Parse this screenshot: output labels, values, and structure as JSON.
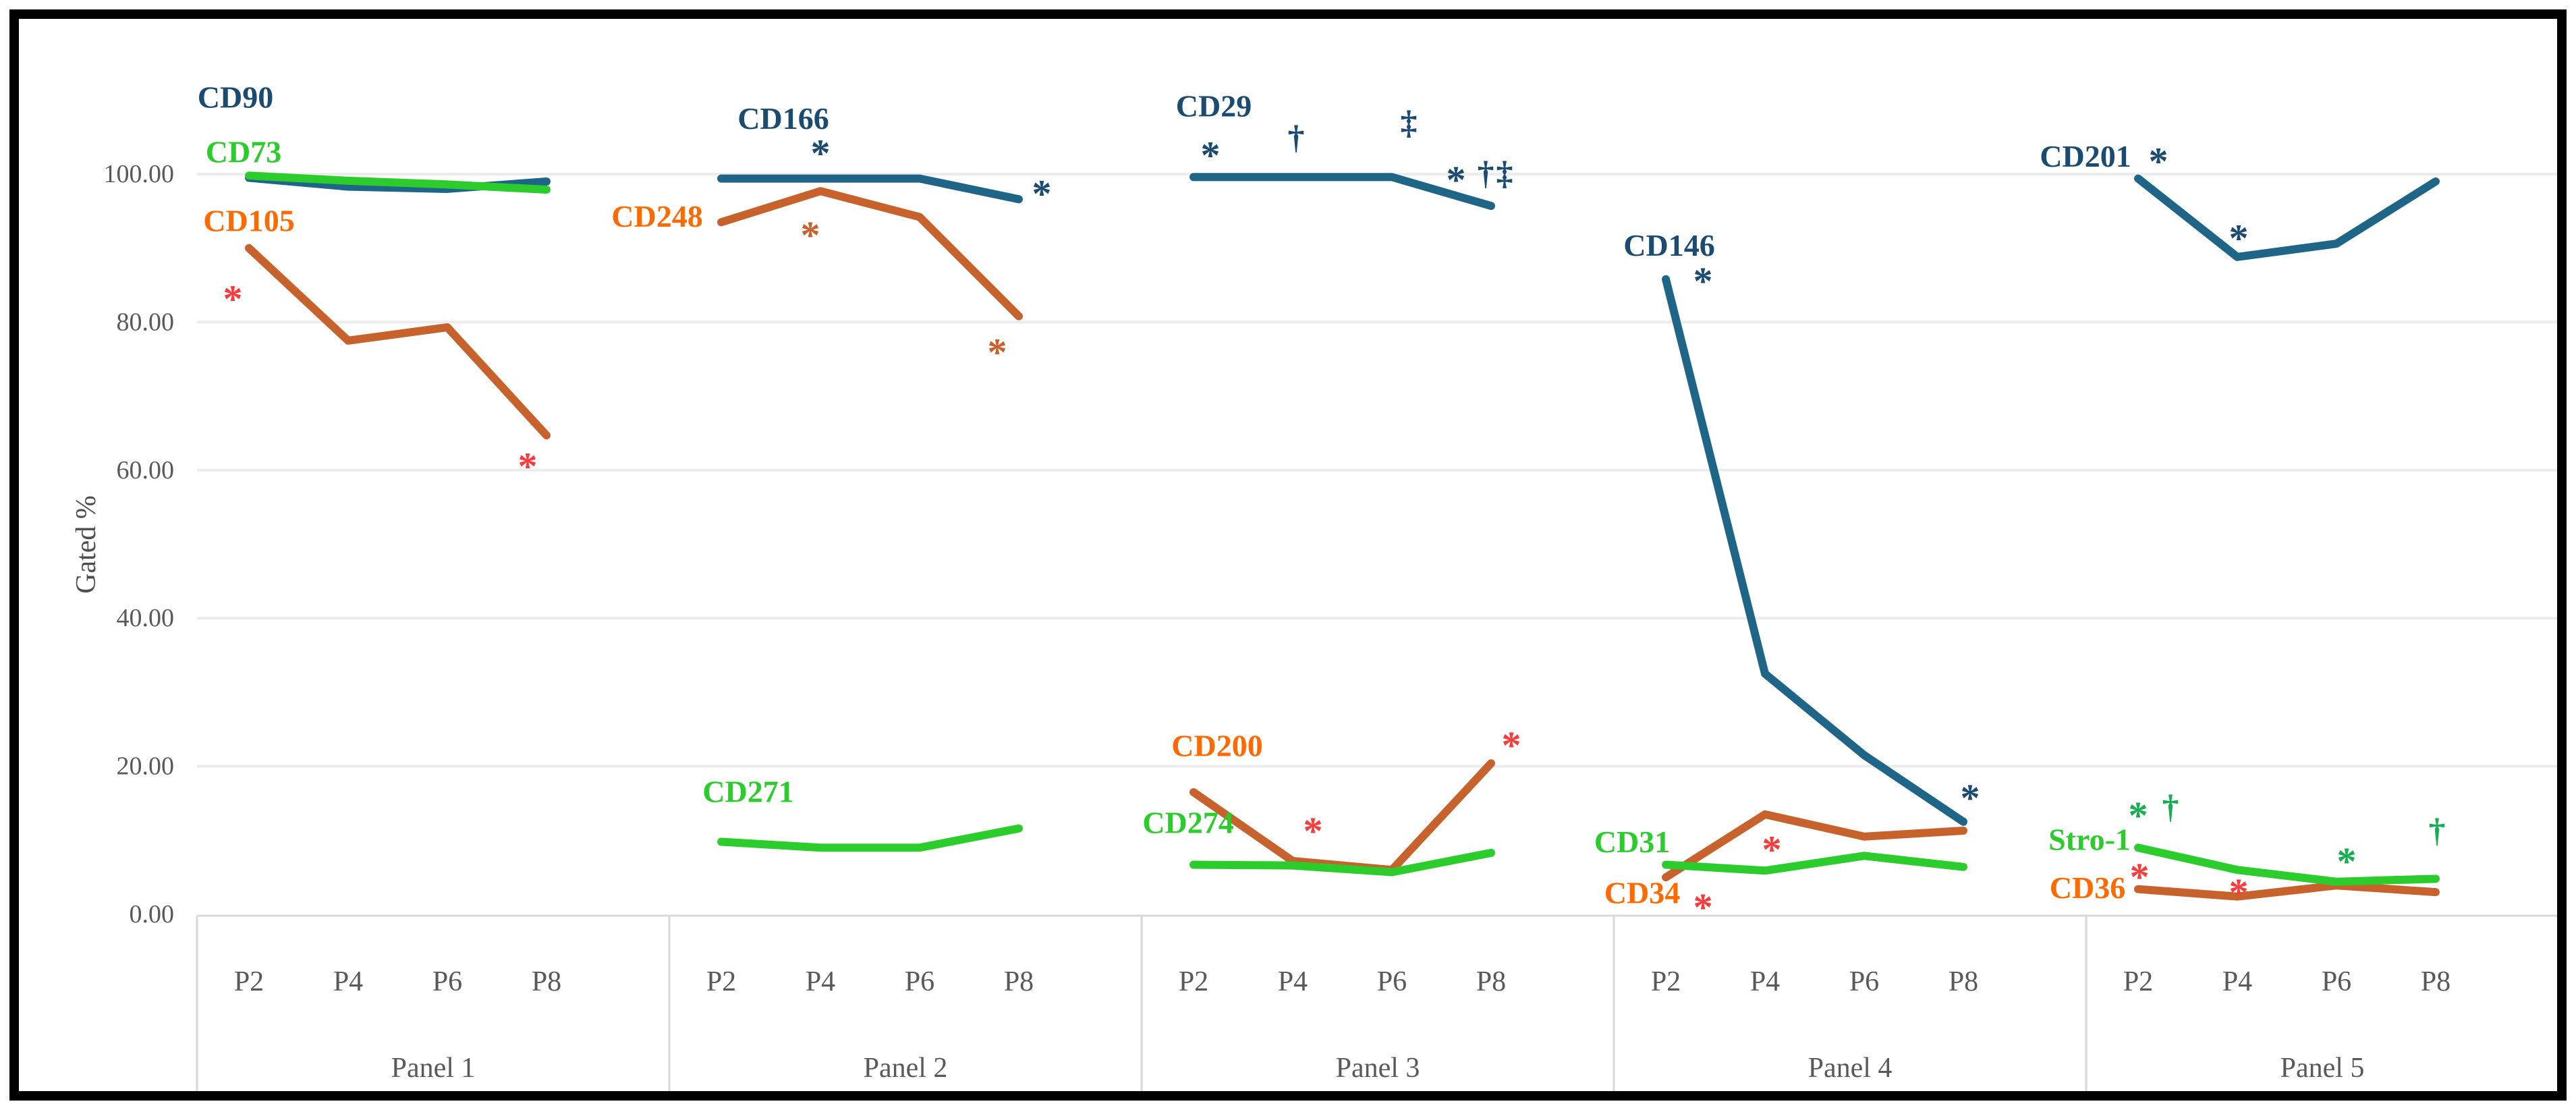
{
  "chart_data": {
    "type": "line",
    "title": "",
    "ylabel": "Gated %",
    "xlabel": "",
    "ylim": [
      0,
      100
    ],
    "grid": true,
    "legend": "inline-labels",
    "y_ticks": [
      {
        "value": 100,
        "label": "100.00"
      },
      {
        "value": 80,
        "label": "80.00"
      },
      {
        "value": 60,
        "label": "60.00"
      },
      {
        "value": 40,
        "label": "40.00"
      },
      {
        "value": 20,
        "label": "20.00"
      },
      {
        "value": 0,
        "label": "0.00"
      }
    ],
    "passages": [
      "P2",
      "P4",
      "P6",
      "P8"
    ],
    "colors": {
      "blue": "#1F6588",
      "navy": "#1B4B70",
      "green": "#2BCC2B",
      "green_marker": "#17AE52",
      "orange": "#C8622C",
      "orange_label": "#FF6A00",
      "red": "#FA3B3B",
      "tick_text": "#595959",
      "axis_text": "#4D4D4D",
      "grid_line": "#ECECEC",
      "band_line": "#D9D9D9",
      "frame": "#000000"
    },
    "panels": [
      {
        "label": "Panel 1",
        "series": [
          {
            "name": "CD90",
            "color": "blue",
            "values": [
              99.5,
              98.3,
              98.0,
              99.0
            ]
          },
          {
            "name": "CD73",
            "color": "green",
            "values": [
              99.8,
              99.1,
              98.6,
              97.9
            ]
          },
          {
            "name": "CD105",
            "color": "orange",
            "values": [
              90.0,
              77.5,
              79.3,
              64.7
            ]
          }
        ],
        "series_labels": [
          {
            "text": "CD90",
            "color": "navy",
            "slot": 0,
            "value": 110.4,
            "dx": -20
          },
          {
            "text": "CD73",
            "color": "green",
            "slot": 0,
            "value": 103.0,
            "dx": -8
          },
          {
            "text": "CD105",
            "color": "orange_label",
            "slot": 0,
            "value": 93.7,
            "dx": 0
          }
        ],
        "markers": [
          {
            "text": "*",
            "color": "red",
            "slot": 0,
            "value": 84.6,
            "dx": -24
          },
          {
            "text": "*",
            "color": "red",
            "slot": 3,
            "value": 62.0,
            "dx": -28
          }
        ]
      },
      {
        "label": "Panel 2",
        "series": [
          {
            "name": "CD166",
            "color": "blue",
            "values": [
              99.4,
              99.4,
              99.4,
              96.6
            ]
          },
          {
            "name": "CD248",
            "color": "orange",
            "values": [
              93.5,
              97.7,
              94.2,
              80.8
            ]
          },
          {
            "name": "CD271",
            "color": "green",
            "values": [
              9.8,
              9.0,
              9.0,
              11.6
            ]
          }
        ],
        "series_labels": [
          {
            "text": "CD166",
            "color": "navy",
            "slot": 1,
            "value": 107.5,
            "dx": -55
          },
          {
            "text": "CD248",
            "color": "orange_label",
            "slot": 0,
            "value": 94.3,
            "dx": -95
          },
          {
            "text": "CD271",
            "color": "green",
            "slot": 0,
            "value": 16.6,
            "dx": 40
          }
        ],
        "markers": [
          {
            "text": "*",
            "color": "navy",
            "slot": 1,
            "value": 104.3,
            "dx": 0
          },
          {
            "text": "*",
            "color": "orange",
            "slot": 1,
            "value": 93.2,
            "dx": -15
          },
          {
            "text": "*",
            "color": "navy",
            "slot": 3,
            "value": 98.8,
            "dx": 34
          },
          {
            "text": "*",
            "color": "orange",
            "slot": 3,
            "value": 77.4,
            "dx": -32
          }
        ]
      },
      {
        "label": "Panel 3",
        "series": [
          {
            "name": "CD29",
            "color": "blue",
            "values": [
              99.6,
              99.6,
              99.6,
              95.7
            ]
          },
          {
            "name": "CD200",
            "color": "orange",
            "values": [
              16.5,
              7.2,
              6.0,
              20.4
            ]
          },
          {
            "name": "CD274",
            "color": "green",
            "values": [
              6.7,
              6.6,
              5.7,
              8.3
            ]
          }
        ],
        "series_labels": [
          {
            "text": "CD29",
            "color": "navy",
            "slot": 0,
            "value": 109.2,
            "dx": 30
          },
          {
            "text": "CD200",
            "color": "orange_label",
            "slot": 0,
            "value": 22.8,
            "dx": 35
          },
          {
            "text": "CD274",
            "color": "green",
            "slot": 0,
            "value": 12.4,
            "dx": -8
          }
        ],
        "markers": [
          {
            "text": "*",
            "color": "navy",
            "slot": 0,
            "value": 104.0,
            "dx": 25
          },
          {
            "text": "†",
            "color": "navy",
            "slot": 1,
            "value": 105.0,
            "dx": 5
          },
          {
            "text": "‡",
            "color": "navy",
            "slot": 2,
            "value": 107.0,
            "dx": 25
          },
          {
            "text": "*",
            "color": "navy",
            "slot": 3,
            "value": 100.7,
            "dx": -52
          },
          {
            "text": "†",
            "color": "navy",
            "slot": 3,
            "value": 100.2,
            "dx": -8
          },
          {
            "text": "‡",
            "color": "navy",
            "slot": 3,
            "value": 100.2,
            "dx": 20
          },
          {
            "text": "*",
            "color": "red",
            "slot": 1,
            "value": 12.7,
            "dx": 30
          },
          {
            "text": "*",
            "color": "red",
            "slot": 3,
            "value": 24.3,
            "dx": 30
          }
        ]
      },
      {
        "label": "Panel 4",
        "series": [
          {
            "name": "CD146",
            "color": "blue",
            "values": [
              85.8,
              32.5,
              21.5,
              12.5
            ]
          },
          {
            "name": "CD31",
            "color": "green",
            "values": [
              6.7,
              5.9,
              7.9,
              6.4
            ]
          },
          {
            "name": "CD34",
            "color": "orange",
            "values": [
              5.0,
              13.5,
              10.5,
              11.3
            ]
          }
        ],
        "series_labels": [
          {
            "text": "CD146",
            "color": "navy",
            "slot": 0,
            "value": 90.4,
            "dx": 5
          },
          {
            "text": "CD31",
            "color": "green",
            "slot": 0,
            "value": 9.8,
            "dx": -50
          },
          {
            "text": "CD34",
            "color": "orange_label",
            "slot": 0,
            "value": 2.9,
            "dx": -35
          }
        ],
        "markers": [
          {
            "text": "*",
            "color": "navy",
            "slot": 0,
            "value": 87.0,
            "dx": 55
          },
          {
            "text": "*",
            "color": "navy",
            "slot": 3,
            "value": 17.2,
            "dx": 10
          },
          {
            "text": "*",
            "color": "red",
            "slot": 0,
            "value": 2.4,
            "dx": 55
          },
          {
            "text": "*",
            "color": "red",
            "slot": 1,
            "value": 10.2,
            "dx": 10
          }
        ]
      },
      {
        "label": "Panel 5",
        "series": [
          {
            "name": "CD201",
            "color": "blue",
            "values": [
              99.4,
              88.8,
              90.6,
              99.0
            ]
          },
          {
            "name": "Stro-1",
            "color": "green",
            "values": [
              9.0,
              6.0,
              4.4,
              4.8
            ]
          },
          {
            "name": "CD36",
            "color": "orange",
            "values": [
              3.4,
              2.4,
              3.9,
              3.0
            ]
          }
        ],
        "series_labels": [
          {
            "text": "CD201",
            "color": "navy",
            "slot": 0,
            "value": 102.4,
            "dx": -78
          },
          {
            "text": "Stro-1",
            "color": "green",
            "slot": 0,
            "value": 10.1,
            "dx": -72
          },
          {
            "text": "CD36",
            "color": "orange_label",
            "slot": 0,
            "value": 3.6,
            "dx": -75
          }
        ],
        "markers": [
          {
            "text": "*",
            "color": "navy",
            "slot": 0,
            "value": 103.2,
            "dx": 30
          },
          {
            "text": "*",
            "color": "navy",
            "slot": 1,
            "value": 92.8,
            "dx": 2
          },
          {
            "text": "*",
            "color": "green_marker",
            "slot": 0,
            "value": 14.8,
            "dx": 0
          },
          {
            "text": "†",
            "color": "green_marker",
            "slot": 0,
            "value": 14.6,
            "dx": 48
          },
          {
            "text": "*",
            "color": "green_marker",
            "slot": 2,
            "value": 8.6,
            "dx": 15
          },
          {
            "text": "†",
            "color": "green_marker",
            "slot": 3,
            "value": 11.4,
            "dx": 2
          },
          {
            "text": "*",
            "color": "red",
            "slot": 0,
            "value": 6.5,
            "dx": 2
          },
          {
            "text": "*",
            "color": "red",
            "slot": 1,
            "value": 4.4,
            "dx": 2
          }
        ]
      }
    ]
  }
}
